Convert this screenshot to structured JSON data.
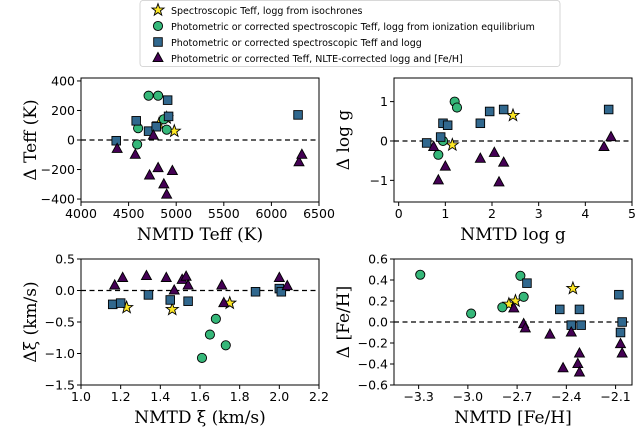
{
  "legend": {
    "entries": [
      {
        "key": "iso",
        "label": "Spectroscopic Teff, logg from isochrones",
        "marker": "star",
        "color": "#fde725"
      },
      {
        "key": "ion",
        "label": "Photometric or corrected spectroscopic Teff, logg from ionization equilibrium",
        "marker": "circle",
        "color": "#35b779"
      },
      {
        "key": "phot",
        "label": "Photometric or corrected spectroscopic Teff and logg",
        "marker": "square",
        "color": "#31688e"
      },
      {
        "key": "nlte",
        "label": "Photometric or corrected Teff, NLTE-corrected logg and [Fe/H]",
        "marker": "triangle",
        "color": "#440154"
      }
    ]
  },
  "chart_data": [
    {
      "type": "scatter",
      "xlabel": "NMTD Teff (K)",
      "ylabel": "Δ Teff (K)",
      "xlim": [
        4000,
        6500
      ],
      "ylim": [
        -420,
        420
      ],
      "xticks": [
        4000,
        4500,
        5000,
        5500,
        6000,
        6500
      ],
      "yticks": [
        -400,
        -200,
        0,
        200,
        400
      ],
      "xtick_labels": [
        "4000",
        "4500",
        "5000",
        "5500",
        "6000",
        "6500"
      ],
      "ytick_labels": [
        "−400",
        "−200",
        "0",
        "200",
        "400"
      ],
      "zero_line": true,
      "series": [
        {
          "name": "iso",
          "points": [
            [
              4820,
              110
            ],
            [
              4900,
              150
            ],
            [
              4980,
              60
            ]
          ]
        },
        {
          "name": "ion",
          "points": [
            [
              4590,
              -30
            ],
            [
              4600,
              80
            ],
            [
              4710,
              300
            ],
            [
              4810,
              300
            ],
            [
              4870,
              140
            ],
            [
              4900,
              70
            ]
          ]
        },
        {
          "name": "phot",
          "points": [
            [
              4370,
              -5
            ],
            [
              4580,
              130
            ],
            [
              4710,
              60
            ],
            [
              4790,
              90
            ],
            [
              4910,
              270
            ],
            [
              4920,
              160
            ],
            [
              6280,
              170
            ]
          ]
        },
        {
          "name": "nlte",
          "points": [
            [
              4380,
              -60
            ],
            [
              4570,
              -100
            ],
            [
              4720,
              -240
            ],
            [
              4760,
              30
            ],
            [
              4810,
              -190
            ],
            [
              4870,
              -300
            ],
            [
              4900,
              -370
            ],
            [
              4960,
              -210
            ],
            [
              6290,
              -150
            ],
            [
              6320,
              -100
            ]
          ]
        }
      ]
    },
    {
      "type": "scatter",
      "xlabel": "NMTD log g",
      "ylabel": "Δ log g",
      "xlim": [
        -0.1,
        5.0
      ],
      "ylim": [
        -1.55,
        1.6
      ],
      "xticks": [
        0,
        1,
        2,
        3,
        4,
        5
      ],
      "yticks": [
        -1,
        0,
        1
      ],
      "xtick_labels": [
        "0",
        "1",
        "2",
        "3",
        "4",
        "5"
      ],
      "ytick_labels": [
        "−1",
        "0",
        "1"
      ],
      "zero_line": true,
      "series": [
        {
          "name": "iso",
          "points": [
            [
              1.15,
              -0.1
            ],
            [
              2.45,
              0.65
            ]
          ]
        },
        {
          "name": "ion",
          "points": [
            [
              0.85,
              -0.35
            ],
            [
              0.95,
              0.0
            ],
            [
              1.2,
              1.0
            ],
            [
              1.25,
              0.85
            ]
          ]
        },
        {
          "name": "phot",
          "points": [
            [
              0.6,
              -0.05
            ],
            [
              0.9,
              0.1
            ],
            [
              0.95,
              0.45
            ],
            [
              1.05,
              0.4
            ],
            [
              1.75,
              0.45
            ],
            [
              1.95,
              0.75
            ],
            [
              2.25,
              0.8
            ],
            [
              4.5,
              0.8
            ]
          ]
        },
        {
          "name": "nlte",
          "points": [
            [
              0.75,
              -0.15
            ],
            [
              0.85,
              -1.0
            ],
            [
              1.0,
              -0.65
            ],
            [
              1.75,
              -0.45
            ],
            [
              2.05,
              -0.3
            ],
            [
              2.15,
              -1.05
            ],
            [
              2.25,
              -0.55
            ],
            [
              4.4,
              -0.15
            ],
            [
              4.55,
              0.1
            ]
          ]
        }
      ]
    },
    {
      "type": "scatter",
      "xlabel": "NMTD ξ (km/s)",
      "ylabel": "Δξ (km/s)",
      "xlim": [
        1.0,
        2.2
      ],
      "ylim": [
        -1.5,
        0.5
      ],
      "xticks": [
        1.0,
        1.2,
        1.4,
        1.6,
        1.8,
        2.0,
        2.2
      ],
      "yticks": [
        -1.5,
        -1.0,
        -0.5,
        0.0,
        0.5
      ],
      "xtick_labels": [
        "1.0",
        "1.2",
        "1.4",
        "1.6",
        "1.8",
        "2.0",
        "2.2"
      ],
      "ytick_labels": [
        "−1.5",
        "−1.0",
        "−0.5",
        "0.0",
        "0.5"
      ],
      "zero_line": true,
      "series": [
        {
          "name": "iso",
          "points": [
            [
              1.23,
              -0.27
            ],
            [
              1.46,
              -0.3
            ],
            [
              1.75,
              -0.2
            ]
          ]
        },
        {
          "name": "ion",
          "points": [
            [
              1.61,
              -1.07
            ],
            [
              1.65,
              -0.7
            ],
            [
              1.68,
              -0.45
            ],
            [
              1.73,
              -0.87
            ]
          ]
        },
        {
          "name": "phot",
          "points": [
            [
              1.16,
              -0.22
            ],
            [
              1.2,
              -0.2
            ],
            [
              1.34,
              -0.07
            ],
            [
              1.45,
              -0.15
            ],
            [
              1.54,
              -0.17
            ],
            [
              1.88,
              -0.02
            ],
            [
              2.0,
              0.03
            ],
            [
              2.01,
              -0.02
            ]
          ]
        },
        {
          "name": "nlte",
          "points": [
            [
              1.17,
              0.08
            ],
            [
              1.21,
              0.2
            ],
            [
              1.33,
              0.23
            ],
            [
              1.43,
              0.2
            ],
            [
              1.47,
              0.0
            ],
            [
              1.51,
              0.17
            ],
            [
              1.53,
              0.22
            ],
            [
              1.54,
              0.08
            ],
            [
              1.71,
              0.08
            ],
            [
              1.72,
              -0.2
            ],
            [
              2.0,
              0.2
            ],
            [
              2.04,
              0.07
            ]
          ]
        }
      ]
    },
    {
      "type": "scatter",
      "xlabel": "NMTD [Fe/H]",
      "ylabel": "Δ [Fe/H]",
      "xlim": [
        -3.45,
        -2.0
      ],
      "ylim": [
        -0.6,
        0.6
      ],
      "xticks": [
        -3.3,
        -3.0,
        -2.7,
        -2.4,
        -2.1
      ],
      "yticks": [
        -0.6,
        -0.4,
        -0.2,
        0.0,
        0.2,
        0.4,
        0.6
      ],
      "xtick_labels": [
        "−3.3",
        "−3.0",
        "−2.7",
        "−2.4",
        "−2.1"
      ],
      "ytick_labels": [
        "−0.6",
        "−0.4",
        "−0.2",
        "0.0",
        "0.2",
        "0.4",
        "0.6"
      ],
      "zero_line": true,
      "series": [
        {
          "name": "iso",
          "points": [
            [
              -2.75,
              0.17
            ],
            [
              -2.71,
              0.2
            ],
            [
              -2.36,
              0.32
            ]
          ]
        },
        {
          "name": "ion",
          "points": [
            [
              -3.29,
              0.45
            ],
            [
              -2.98,
              0.08
            ],
            [
              -2.79,
              0.14
            ],
            [
              -2.68,
              0.44
            ],
            [
              -2.66,
              0.24
            ]
          ]
        },
        {
          "name": "phot",
          "points": [
            [
              -2.64,
              0.37
            ],
            [
              -2.44,
              0.12
            ],
            [
              -2.37,
              -0.03
            ],
            [
              -2.32,
              0.12
            ],
            [
              -2.31,
              -0.03
            ],
            [
              -2.08,
              0.26
            ],
            [
              -2.07,
              -0.1
            ],
            [
              -2.06,
              0.0
            ]
          ]
        },
        {
          "name": "nlte",
          "points": [
            [
              -2.72,
              0.13
            ],
            [
              -2.66,
              -0.02
            ],
            [
              -2.65,
              -0.06
            ],
            [
              -2.5,
              -0.12
            ],
            [
              -2.42,
              -0.44
            ],
            [
              -2.37,
              -0.1
            ],
            [
              -2.33,
              -0.4
            ],
            [
              -2.32,
              -0.3
            ],
            [
              -2.32,
              -0.48
            ],
            [
              -2.07,
              -0.21
            ],
            [
              -2.06,
              -0.3
            ]
          ]
        }
      ]
    }
  ]
}
